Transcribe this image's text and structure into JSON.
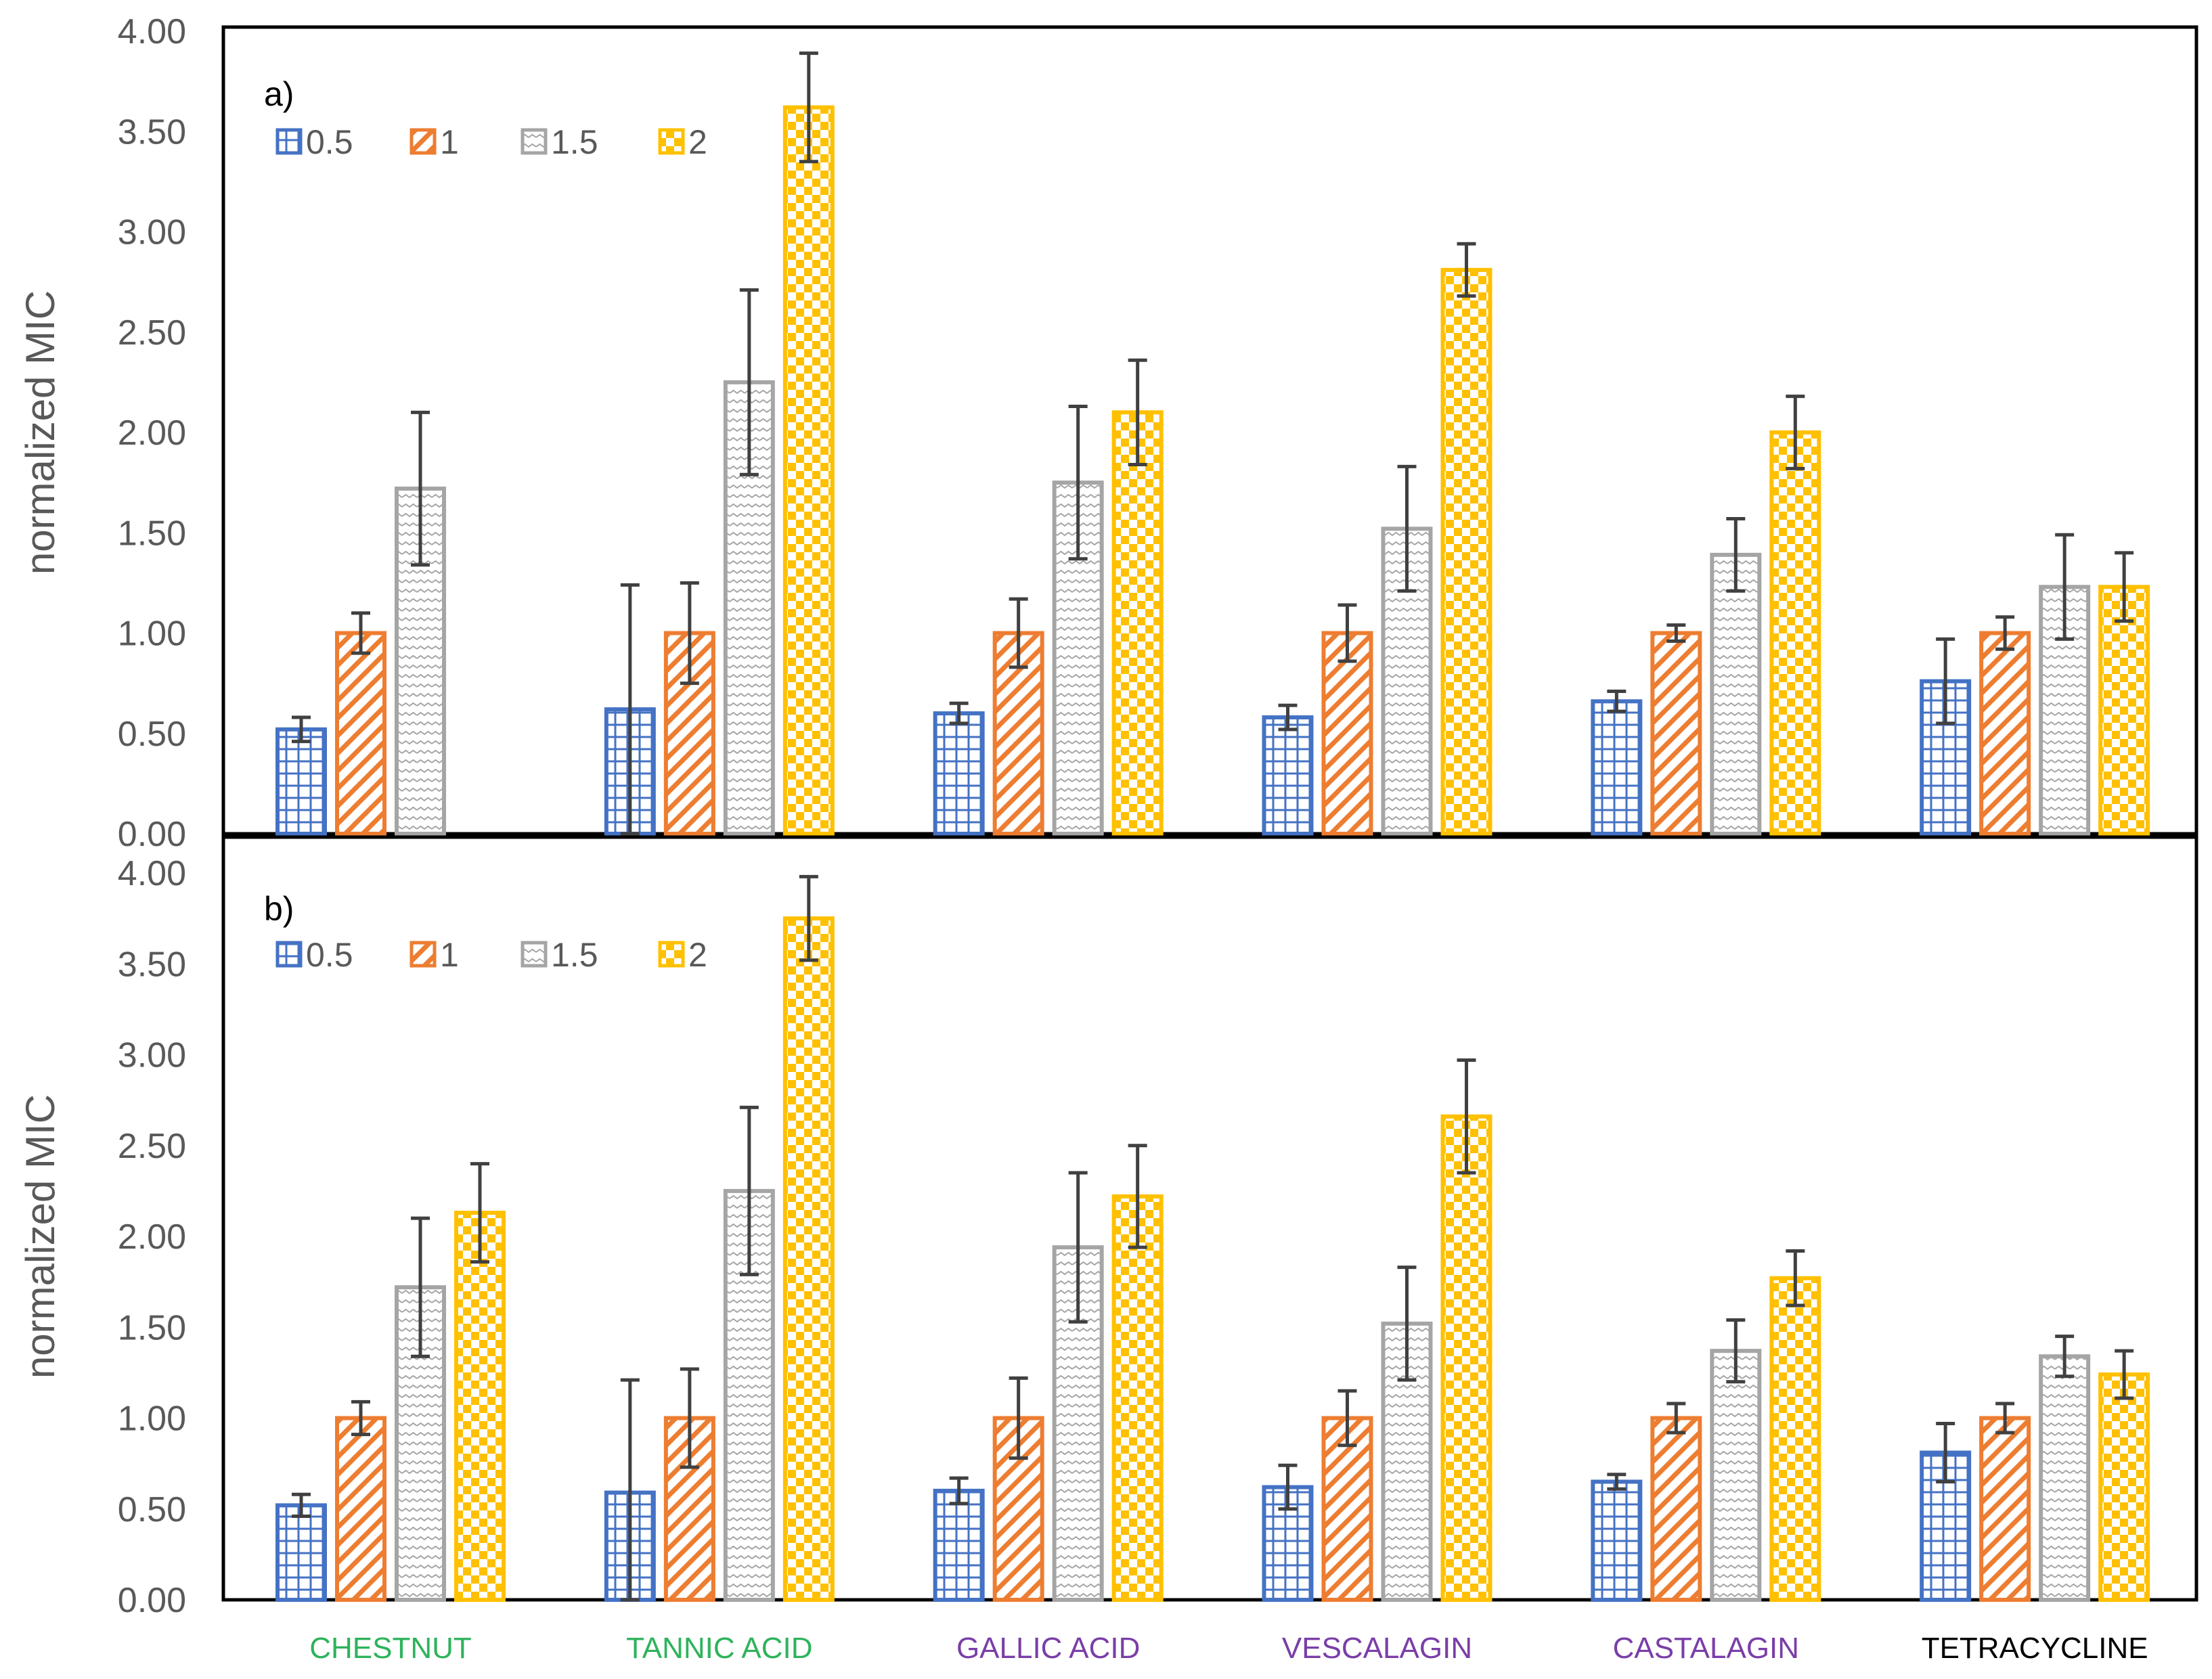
{
  "chart_data": [
    {
      "type": "bar",
      "panel_label": "a)",
      "ylabel": "normalized MIC",
      "ylim": [
        0,
        4
      ],
      "yticks": [
        "0.00",
        "0.50",
        "1.00",
        "1.50",
        "2.00",
        "2.50",
        "3.00",
        "3.50",
        "4.00"
      ],
      "categories": [
        "CHESTNUT",
        "TANNIC ACID",
        "GALLIC ACID",
        "VESCALAGIN",
        "CASTALAGIN",
        "TETRACYCLINE"
      ],
      "legend": [
        "0.5",
        "1",
        "1.5",
        "2"
      ],
      "series": [
        {
          "name": "0.5",
          "values": [
            0.52,
            0.62,
            0.6,
            0.58,
            0.66,
            0.76
          ],
          "errors": [
            0.06,
            0.62,
            0.05,
            0.06,
            0.05,
            0.21
          ]
        },
        {
          "name": "1",
          "values": [
            1.0,
            1.0,
            1.0,
            1.0,
            1.0,
            1.0
          ],
          "errors": [
            0.1,
            0.25,
            0.17,
            0.14,
            0.04,
            0.08
          ]
        },
        {
          "name": "1.5",
          "values": [
            1.72,
            2.25,
            1.75,
            1.52,
            1.39,
            1.23
          ],
          "errors": [
            0.38,
            0.46,
            0.38,
            0.31,
            0.18,
            0.26
          ]
        },
        {
          "name": "2",
          "values": [
            null,
            3.62,
            2.1,
            2.81,
            2.0,
            1.23
          ],
          "errors": [
            null,
            0.27,
            0.26,
            0.13,
            0.18,
            0.17
          ]
        }
      ]
    },
    {
      "type": "bar",
      "panel_label": "b)",
      "ylabel": "normalized MIC",
      "ylim": [
        0,
        4
      ],
      "yticks": [
        "0.00",
        "0.50",
        "1.00",
        "1.50",
        "2.00",
        "2.50",
        "3.00",
        "3.50",
        "4.00"
      ],
      "categories": [
        "CHESTNUT",
        "TANNIC ACID",
        "GALLIC ACID",
        "VESCALAGIN",
        "CASTALAGIN",
        "TETRACYCLINE"
      ],
      "legend": [
        "0.5",
        "1",
        "1.5",
        "2"
      ],
      "series": [
        {
          "name": "0.5",
          "values": [
            0.52,
            0.59,
            0.6,
            0.62,
            0.65,
            0.81
          ],
          "errors": [
            0.06,
            0.62,
            0.07,
            0.12,
            0.04,
            0.16
          ]
        },
        {
          "name": "1",
          "values": [
            1.0,
            1.0,
            1.0,
            1.0,
            1.0,
            1.0
          ],
          "errors": [
            0.09,
            0.27,
            0.22,
            0.15,
            0.08,
            0.08
          ]
        },
        {
          "name": "1.5",
          "values": [
            1.72,
            2.25,
            1.94,
            1.52,
            1.37,
            1.34
          ],
          "errors": [
            0.38,
            0.46,
            0.41,
            0.31,
            0.17,
            0.11
          ]
        },
        {
          "name": "2",
          "values": [
            2.13,
            3.75,
            2.22,
            2.66,
            1.77,
            1.24
          ],
          "errors": [
            0.27,
            0.23,
            0.28,
            0.31,
            0.15,
            0.13
          ]
        }
      ]
    }
  ],
  "category_colors": [
    "#2eb35c",
    "#2eb35c",
    "#7a3ea8",
    "#7a3ea8",
    "#7a3ea8",
    "#000000"
  ],
  "series_colors": [
    "#4472c4",
    "#ed7d31",
    "#a5a5a5",
    "#ffc000"
  ]
}
